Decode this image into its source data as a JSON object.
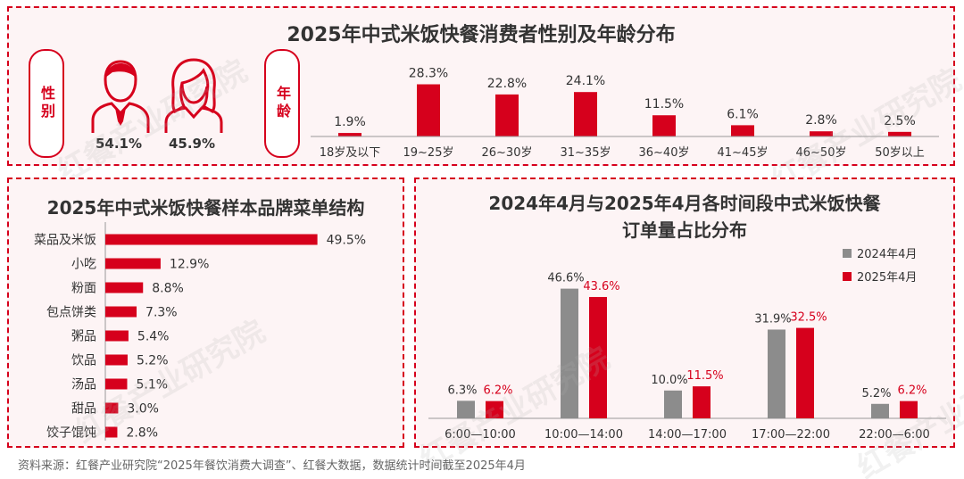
{
  "titles": {
    "top": "2025年中式米饭快餐消费者性别及年龄分布",
    "left": "2025年中式米饭快餐样本品牌菜单结构",
    "right_line1": "2024年4月与2025年4月各时间段中式米饭快餐",
    "right_line2": "订单量占比分布"
  },
  "gender": {
    "label": "性别",
    "male_pct": "54.1%",
    "female_pct": "45.9%",
    "male_icon": "male-person-icon",
    "female_icon": "female-person-icon"
  },
  "age_label": "年龄",
  "source": "资料来源：红餐产业研究院“2025年餐饮消费大调查”、红餐大数据，数据统计时间截至2025年4月",
  "watermark": "红餐产业研究院",
  "colors": {
    "red": "#d6001c",
    "gray": "#8c8c8c",
    "panel_bg": "#fdf4f5"
  },
  "chart_data": [
    {
      "type": "bar",
      "title": "2025年中式米饭快餐消费者性别及年龄分布",
      "categories": [
        "18岁及以下",
        "19~25岁",
        "26~30岁",
        "31~35岁",
        "36~40岁",
        "41~45岁",
        "46~50岁",
        "50岁以上"
      ],
      "values": [
        1.9,
        28.3,
        22.8,
        24.1,
        11.5,
        6.1,
        2.8,
        2.5
      ],
      "labels": [
        "1.9%",
        "28.3%",
        "22.8%",
        "24.1%",
        "11.5%",
        "6.1%",
        "2.8%",
        "2.5%"
      ],
      "ylim": [
        0,
        30
      ],
      "grid": false
    },
    {
      "type": "bar",
      "orientation": "horizontal",
      "title": "2025年中式米饭快餐样本品牌菜单结构",
      "categories": [
        "菜品及米饭",
        "小吃",
        "粉面",
        "包点饼类",
        "粥品",
        "饮品",
        "汤品",
        "甜品",
        "饺子馄饨"
      ],
      "values": [
        49.5,
        12.9,
        8.8,
        7.3,
        5.4,
        5.2,
        5.1,
        3.0,
        2.8
      ],
      "labels": [
        "49.5%",
        "12.9%",
        "8.8%",
        "7.3%",
        "5.4%",
        "5.2%",
        "5.1%",
        "3.0%",
        "2.8%"
      ],
      "xlim": [
        0,
        50
      ],
      "grid": false
    },
    {
      "type": "bar",
      "title": "2024年4月与2025年4月各时间段中式米饭快餐订单量占比分布",
      "categories": [
        "6:00—10:00",
        "10:00—14:00",
        "14:00—17:00",
        "17:00—22:00",
        "22:00—6:00"
      ],
      "series": [
        {
          "name": "2024年4月",
          "values": [
            6.3,
            46.6,
            10.0,
            31.9,
            5.2
          ],
          "labels": [
            "6.3%",
            "46.6%",
            "10.0%",
            "31.9%",
            "5.2%"
          ],
          "color": "#8c8c8c"
        },
        {
          "name": "2025年4月",
          "values": [
            6.2,
            43.6,
            11.5,
            32.5,
            6.2
          ],
          "labels": [
            "6.2%",
            "43.6%",
            "11.5%",
            "32.5%",
            "6.2%"
          ],
          "color": "#d6001c"
        }
      ],
      "legend": "top-right",
      "ylim": [
        0,
        50
      ],
      "grid": false
    }
  ]
}
